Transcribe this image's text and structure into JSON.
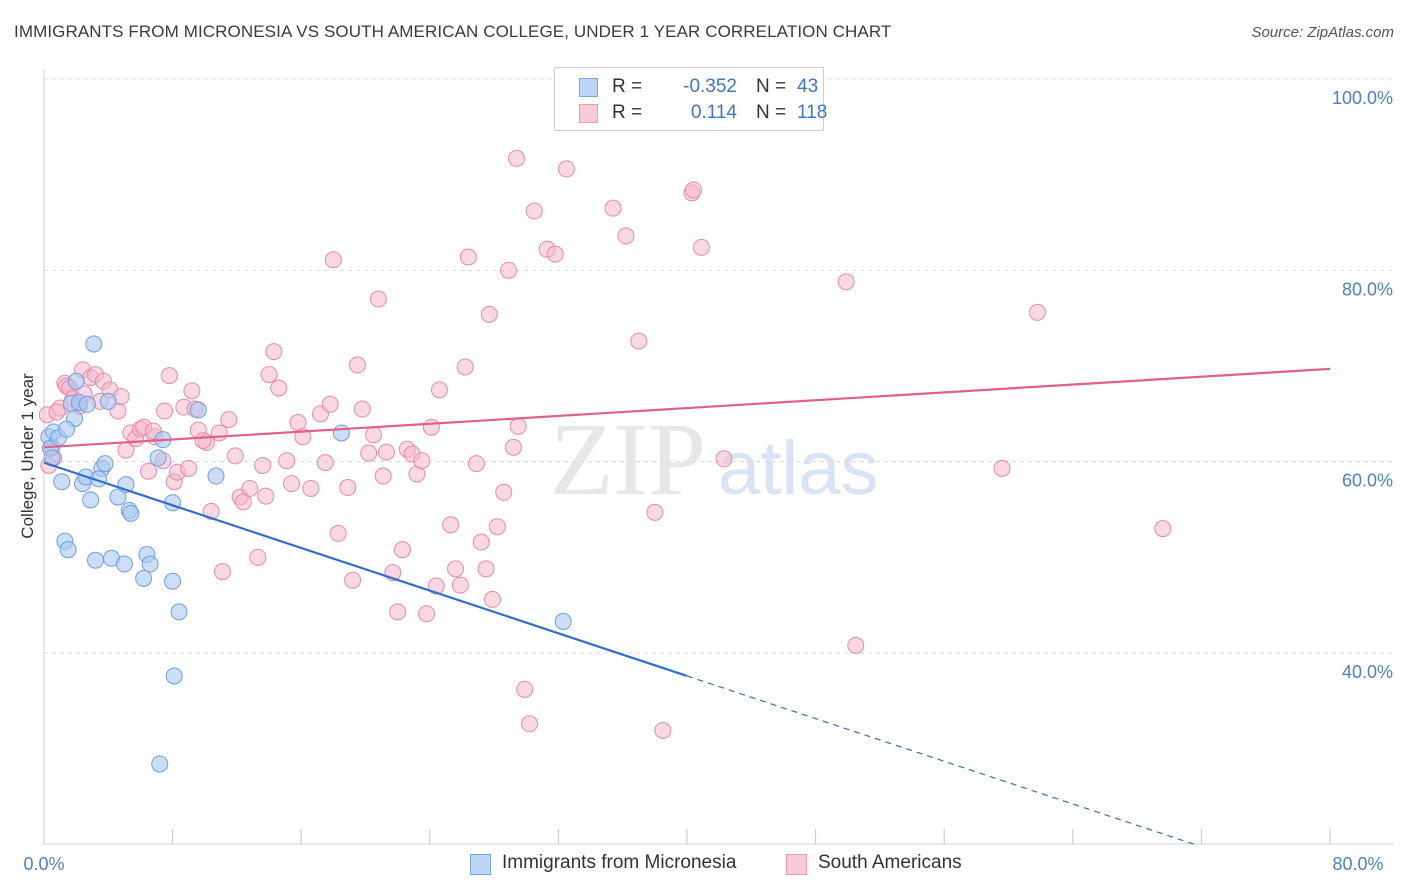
{
  "title": "IMMIGRANTS FROM MICRONESIA VS SOUTH AMERICAN COLLEGE, UNDER 1 YEAR CORRELATION CHART",
  "source": "Source: ZipAtlas.com",
  "watermark": {
    "zip": "ZIP",
    "atlas": "atlas"
  },
  "legend": {
    "rows": [
      {
        "r_label": "R =",
        "r_value": "-0.352",
        "n_label": "N =",
        "n_value": "43"
      },
      {
        "r_label": "R =",
        "r_value": "0.114",
        "n_label": "N =",
        "n_value": "118"
      }
    ]
  },
  "bottom_legend": [
    {
      "label": "Immigrants from Micronesia"
    },
    {
      "label": "South Americans"
    }
  ],
  "colors": {
    "blue_fill": "#a8c8f0",
    "blue_stroke": "#6f9fe0",
    "blue_line": "#2f6fd0",
    "pink_fill": "#f4b8cc",
    "pink_stroke": "#e88aa8",
    "pink_line": "#e0608a",
    "tick_text": "#4a7fd4"
  },
  "chart_data": {
    "type": "scatter",
    "title": "IMMIGRANTS FROM MICRONESIA VS SOUTH AMERICAN COLLEGE, UNDER 1 YEAR CORRELATION CHART",
    "xlabel": "",
    "ylabel": "College, Under 1 year",
    "xlim": [
      0,
      80
    ],
    "ylim": [
      20,
      102
    ],
    "x_tick_labels": [
      "0.0%",
      "80.0%"
    ],
    "y_ticks": [
      40,
      60,
      80,
      100
    ],
    "y_tick_labels": [
      "40.0%",
      "60.0%",
      "80.0%",
      "100.0%"
    ],
    "grid": true,
    "legend_position": "top-center",
    "series": [
      {
        "name": "Immigrants from Micronesia",
        "color": "#a8c8f0",
        "points": [
          [
            0.3,
            62.6
          ],
          [
            0.4,
            61.4
          ],
          [
            0.5,
            60.4
          ],
          [
            0.6,
            63.1
          ],
          [
            0.9,
            62.5
          ],
          [
            1.1,
            57.9
          ],
          [
            1.3,
            51.7
          ],
          [
            1.5,
            50.8
          ],
          [
            1.7,
            66.1
          ],
          [
            1.9,
            64.5
          ],
          [
            2.0,
            68.4
          ],
          [
            2.2,
            66.2
          ],
          [
            2.4,
            57.7
          ],
          [
            2.6,
            58.4
          ],
          [
            2.9,
            56.0
          ],
          [
            3.1,
            72.3
          ],
          [
            3.2,
            49.7
          ],
          [
            3.6,
            59.3
          ],
          [
            3.8,
            59.8
          ],
          [
            4.0,
            66.3
          ],
          [
            4.2,
            49.9
          ],
          [
            4.6,
            56.3
          ],
          [
            5.0,
            49.3
          ],
          [
            5.3,
            54.9
          ],
          [
            5.4,
            54.6
          ],
          [
            6.2,
            47.8
          ],
          [
            6.4,
            50.3
          ],
          [
            6.6,
            49.3
          ],
          [
            7.1,
            60.4
          ],
          [
            7.4,
            62.3
          ],
          [
            8.0,
            47.5
          ],
          [
            8.0,
            55.7
          ],
          [
            8.1,
            37.6
          ],
          [
            8.4,
            44.3
          ],
          [
            9.6,
            65.4
          ],
          [
            10.7,
            58.5
          ],
          [
            18.5,
            63.0
          ],
          [
            32.3,
            43.3
          ],
          [
            7.2,
            28.4
          ],
          [
            1.4,
            63.4
          ],
          [
            2.7,
            66.0
          ],
          [
            5.1,
            57.6
          ],
          [
            3.4,
            58.2
          ]
        ],
        "trend": {
          "x_solid": [
            0,
            40
          ],
          "y_solid": [
            59.9,
            37.6
          ],
          "x_dashed": [
            40,
            80
          ],
          "y_dashed": [
            37.6,
            15.3
          ]
        }
      },
      {
        "name": "South Americans",
        "color": "#f4b8cc",
        "points": [
          [
            0.2,
            64.9
          ],
          [
            0.3,
            59.6
          ],
          [
            0.5,
            61.5
          ],
          [
            0.6,
            60.4
          ],
          [
            1.0,
            65.6
          ],
          [
            1.3,
            68.2
          ],
          [
            1.4,
            67.9
          ],
          [
            1.6,
            67.7
          ],
          [
            1.8,
            66.6
          ],
          [
            2.2,
            65.8
          ],
          [
            2.4,
            69.6
          ],
          [
            2.9,
            68.8
          ],
          [
            3.2,
            69.1
          ],
          [
            3.5,
            66.3
          ],
          [
            3.7,
            68.4
          ],
          [
            4.1,
            67.5
          ],
          [
            4.6,
            65.3
          ],
          [
            4.8,
            66.8
          ],
          [
            5.1,
            61.2
          ],
          [
            5.4,
            63.0
          ],
          [
            5.7,
            62.4
          ],
          [
            6.0,
            63.4
          ],
          [
            6.2,
            63.6
          ],
          [
            6.5,
            59.0
          ],
          [
            6.9,
            62.6
          ],
          [
            7.4,
            60.1
          ],
          [
            7.5,
            65.3
          ],
          [
            7.8,
            69.0
          ],
          [
            8.1,
            57.9
          ],
          [
            8.3,
            58.9
          ],
          [
            8.7,
            65.7
          ],
          [
            9.0,
            59.3
          ],
          [
            9.2,
            67.4
          ],
          [
            9.4,
            65.5
          ],
          [
            9.6,
            63.3
          ],
          [
            10.1,
            62.0
          ],
          [
            10.4,
            54.8
          ],
          [
            10.9,
            63.0
          ],
          [
            11.1,
            48.5
          ],
          [
            11.5,
            64.4
          ],
          [
            11.9,
            60.6
          ],
          [
            12.2,
            56.3
          ],
          [
            12.4,
            55.8
          ],
          [
            12.8,
            57.2
          ],
          [
            13.3,
            50.0
          ],
          [
            13.6,
            59.6
          ],
          [
            13.8,
            56.4
          ],
          [
            14.0,
            69.1
          ],
          [
            14.3,
            71.5
          ],
          [
            14.6,
            67.7
          ],
          [
            15.1,
            60.1
          ],
          [
            15.4,
            57.7
          ],
          [
            15.8,
            64.1
          ],
          [
            16.1,
            62.6
          ],
          [
            16.6,
            57.2
          ],
          [
            17.2,
            65.0
          ],
          [
            17.5,
            59.9
          ],
          [
            17.8,
            66.0
          ],
          [
            18.0,
            81.1
          ],
          [
            18.3,
            52.5
          ],
          [
            18.9,
            57.3
          ],
          [
            19.2,
            47.6
          ],
          [
            19.5,
            70.1
          ],
          [
            19.8,
            65.5
          ],
          [
            20.2,
            60.9
          ],
          [
            20.5,
            62.8
          ],
          [
            20.8,
            77.0
          ],
          [
            21.1,
            58.5
          ],
          [
            21.3,
            61.0
          ],
          [
            21.7,
            48.4
          ],
          [
            22.0,
            44.3
          ],
          [
            22.3,
            50.8
          ],
          [
            22.6,
            61.3
          ],
          [
            22.9,
            60.8
          ],
          [
            23.2,
            58.7
          ],
          [
            23.5,
            60.1
          ],
          [
            23.8,
            44.1
          ],
          [
            24.1,
            63.6
          ],
          [
            24.4,
            47.0
          ],
          [
            24.6,
            67.5
          ],
          [
            25.3,
            53.4
          ],
          [
            25.6,
            48.8
          ],
          [
            25.9,
            47.1
          ],
          [
            26.2,
            69.9
          ],
          [
            26.4,
            81.4
          ],
          [
            26.9,
            59.8
          ],
          [
            27.2,
            51.6
          ],
          [
            27.5,
            48.8
          ],
          [
            27.7,
            75.4
          ],
          [
            27.9,
            45.6
          ],
          [
            28.2,
            53.2
          ],
          [
            28.6,
            56.8
          ],
          [
            28.9,
            80.0
          ],
          [
            29.2,
            61.5
          ],
          [
            29.5,
            63.7
          ],
          [
            29.9,
            36.2
          ],
          [
            30.2,
            32.6
          ],
          [
            30.5,
            86.2
          ],
          [
            29.4,
            91.7
          ],
          [
            31.3,
            82.2
          ],
          [
            31.8,
            81.7
          ],
          [
            32.5,
            90.6
          ],
          [
            35.4,
            86.5
          ],
          [
            36.2,
            83.6
          ],
          [
            37.0,
            72.6
          ],
          [
            38.0,
            54.7
          ],
          [
            38.5,
            31.9
          ],
          [
            40.3,
            88.1
          ],
          [
            40.4,
            88.4
          ],
          [
            40.9,
            82.4
          ],
          [
            42.3,
            60.3
          ],
          [
            49.9,
            78.8
          ],
          [
            50.5,
            40.8
          ],
          [
            59.6,
            59.3
          ],
          [
            61.8,
            75.6
          ],
          [
            69.6,
            53.0
          ],
          [
            0.8,
            65.2
          ],
          [
            2.5,
            67.1
          ],
          [
            6.8,
            63.2
          ],
          [
            9.9,
            62.2
          ]
        ],
        "trend": {
          "x": [
            0,
            80
          ],
          "y": [
            61.5,
            69.7
          ]
        }
      }
    ]
  }
}
